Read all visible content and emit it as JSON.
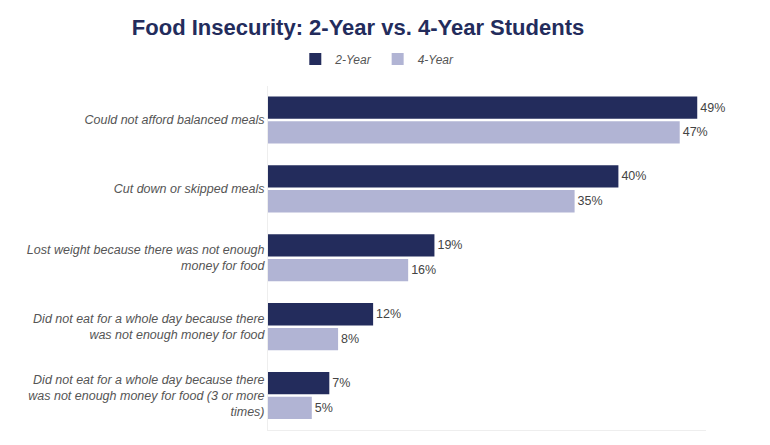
{
  "chart_data": {
    "type": "bar",
    "title": "Food Insecurity: 2-Year vs. 4-Year Students",
    "orientation": "horizontal",
    "categories": [
      "Could not afford balanced meals",
      "Cut down or skipped meals",
      "Lost weight because there was not enough money for food",
      "Did not eat for a whole day because there was not enough money for food",
      "Did not eat for a whole day because there was not enough money for food (3 or more times)"
    ],
    "series": [
      {
        "name": "2-Year",
        "color": "#232c5c",
        "values": [
          49,
          40,
          19,
          12,
          7
        ],
        "value_labels": [
          "49%",
          "40%",
          "19%",
          "12%",
          "7%"
        ]
      },
      {
        "name": "4-Year",
        "color": "#b1b4d4",
        "values": [
          47,
          35,
          16,
          8,
          5
        ],
        "value_labels": [
          "47%",
          "35%",
          "16%",
          "8%",
          "5%"
        ]
      }
    ],
    "xlim": [
      0,
      50
    ],
    "data_labels": true,
    "tick_labels": "y",
    "grid": false,
    "legend": "top"
  }
}
